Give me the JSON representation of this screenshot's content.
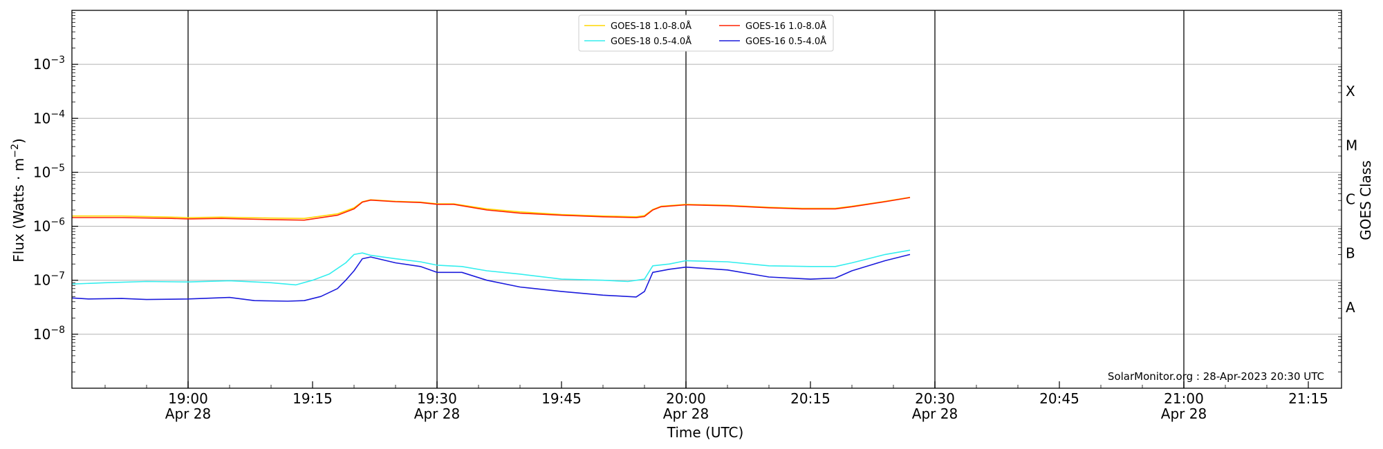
{
  "chart_data": {
    "type": "line",
    "title": "",
    "xlabel": "Time (UTC)",
    "ylabel": "Flux (Watts · m",
    "ylabel_sup": "−2",
    "ylabel_close": ")",
    "y_scale": "log",
    "ylim": [
      1e-09,
      0.01
    ],
    "y_ticks": [
      {
        "value": 1e-08,
        "base": "10",
        "exp": "−8"
      },
      {
        "value": 1e-07,
        "base": "10",
        "exp": "−7"
      },
      {
        "value": 1e-06,
        "base": "10",
        "exp": "−6"
      },
      {
        "value": 1e-05,
        "base": "10",
        "exp": "−5"
      },
      {
        "value": 0.0001,
        "base": "10",
        "exp": "−4"
      },
      {
        "value": 0.001,
        "base": "10",
        "exp": "−3"
      }
    ],
    "xlim": [
      "18:46",
      "21:19"
    ],
    "x_ticks": [
      {
        "time": "19:00",
        "label": "19:00",
        "date": "Apr 28"
      },
      {
        "time": "19:15",
        "label": "19:15",
        "date": ""
      },
      {
        "time": "19:30",
        "label": "19:30",
        "date": "Apr 28"
      },
      {
        "time": "19:45",
        "label": "19:45",
        "date": ""
      },
      {
        "time": "20:00",
        "label": "20:00",
        "date": "Apr 28"
      },
      {
        "time": "20:15",
        "label": "20:15",
        "date": ""
      },
      {
        "time": "20:30",
        "label": "20:30",
        "date": "Apr 28"
      },
      {
        "time": "20:45",
        "label": "20:45",
        "date": ""
      },
      {
        "time": "21:00",
        "label": "21:00",
        "date": "Apr 28"
      },
      {
        "time": "21:15",
        "label": "21:15",
        "date": ""
      }
    ],
    "vertical_lines": [
      "19:00",
      "19:30",
      "20:00",
      "20:30",
      "21:00"
    ],
    "right_axis": {
      "label": "GOES Class",
      "classes": [
        {
          "label": "A",
          "value": 3.16e-08
        },
        {
          "label": "B",
          "value": 3.16e-07
        },
        {
          "label": "C",
          "value": 3.16e-06
        },
        {
          "label": "M",
          "value": 3.16e-05
        },
        {
          "label": "X",
          "value": 0.000316
        }
      ]
    },
    "grid": "horizontal at decades",
    "legend": {
      "placement": "top-center",
      "columns": 2
    },
    "annotation": "SolarMonitor.org : 28-Apr-2023 20:30 UTC",
    "series": [
      {
        "name": "GOES-18 1.0-8.0Å",
        "color": "#ffd700",
        "x": [
          "18:46",
          "18:52",
          "18:58",
          "19:00",
          "19:04",
          "19:10",
          "19:14",
          "19:18",
          "19:20",
          "19:21",
          "19:22",
          "19:25",
          "19:28",
          "19:30",
          "19:32",
          "19:36",
          "19:40",
          "19:45",
          "19:50",
          "19:54",
          "19:55",
          "19:56",
          "19:57",
          "20:00",
          "20:05",
          "20:10",
          "20:14",
          "20:18",
          "20:20",
          "20:24",
          "20:27"
        ],
        "y": [
          1.55e-06,
          1.55e-06,
          1.48e-06,
          1.45e-06,
          1.48e-06,
          1.42e-06,
          1.4e-06,
          1.7e-06,
          2.2e-06,
          2.85e-06,
          3.1e-06,
          2.9e-06,
          2.8e-06,
          2.6e-06,
          2.6e-06,
          2.1e-06,
          1.85e-06,
          1.65e-06,
          1.55e-06,
          1.5e-06,
          1.58e-06,
          2.05e-06,
          2.35e-06,
          2.55e-06,
          2.45e-06,
          2.25e-06,
          2.15e-06,
          2.15e-06,
          2.35e-06,
          2.9e-06,
          3.45e-06
        ]
      },
      {
        "name": "GOES-16 1.0-8.0Å",
        "color": "#ff2000",
        "x": [
          "18:46",
          "18:52",
          "18:58",
          "19:00",
          "19:04",
          "19:10",
          "19:14",
          "19:18",
          "19:20",
          "19:21",
          "19:22",
          "19:25",
          "19:28",
          "19:30",
          "19:32",
          "19:36",
          "19:40",
          "19:45",
          "19:50",
          "19:54",
          "19:55",
          "19:56",
          "19:57",
          "20:00",
          "20:05",
          "20:10",
          "20:14",
          "20:18",
          "20:20",
          "20:24",
          "20:27"
        ],
        "y": [
          1.45e-06,
          1.45e-06,
          1.4e-06,
          1.37e-06,
          1.4e-06,
          1.33e-06,
          1.3e-06,
          1.6e-06,
          2.1e-06,
          2.8e-06,
          3.05e-06,
          2.85e-06,
          2.75e-06,
          2.55e-06,
          2.55e-06,
          2e-06,
          1.75e-06,
          1.6e-06,
          1.5e-06,
          1.45e-06,
          1.52e-06,
          2e-06,
          2.3e-06,
          2.5e-06,
          2.4e-06,
          2.2e-06,
          2.1e-06,
          2.1e-06,
          2.3e-06,
          2.85e-06,
          3.4e-06
        ]
      },
      {
        "name": "GOES-18 0.5-4.0Å",
        "color": "#33eeee",
        "x": [
          "18:46",
          "18:50",
          "18:55",
          "19:00",
          "19:05",
          "19:10",
          "19:13",
          "19:15",
          "19:17",
          "19:19",
          "19:20",
          "19:21",
          "19:22",
          "19:25",
          "19:28",
          "19:30",
          "19:33",
          "19:36",
          "19:40",
          "19:45",
          "19:50",
          "19:53",
          "19:55",
          "19:56",
          "19:58",
          "20:00",
          "20:05",
          "20:10",
          "20:15",
          "20:18",
          "20:20",
          "20:24",
          "20:27"
        ],
        "y": [
          8.5e-08,
          9e-08,
          9.5e-08,
          9.3e-08,
          9.8e-08,
          9e-08,
          8.2e-08,
          1e-07,
          1.3e-07,
          2.1e-07,
          3e-07,
          3.2e-07,
          2.9e-07,
          2.5e-07,
          2.2e-07,
          1.9e-07,
          1.8e-07,
          1.5e-07,
          1.3e-07,
          1.05e-07,
          1e-07,
          9.5e-08,
          1.05e-07,
          1.85e-07,
          2e-07,
          2.3e-07,
          2.2e-07,
          1.85e-07,
          1.8e-07,
          1.8e-07,
          2.1e-07,
          3e-07,
          3.6e-07
        ]
      },
      {
        "name": "GOES-16 0.5-4.0Å",
        "color": "#1a1adc",
        "x": [
          "18:46",
          "18:48",
          "18:52",
          "18:55",
          "19:00",
          "19:05",
          "19:08",
          "19:12",
          "19:14",
          "19:16",
          "19:18",
          "19:19",
          "19:20",
          "19:21",
          "19:22",
          "19:25",
          "19:28",
          "19:30",
          "19:33",
          "19:36",
          "19:40",
          "19:45",
          "19:50",
          "19:54",
          "19:55",
          "19:56",
          "19:58",
          "20:00",
          "20:05",
          "20:10",
          "20:15",
          "20:18",
          "20:20",
          "20:24",
          "20:27"
        ],
        "y": [
          4.7e-08,
          4.5e-08,
          4.6e-08,
          4.4e-08,
          4.5e-08,
          4.8e-08,
          4.2e-08,
          4.1e-08,
          4.2e-08,
          5e-08,
          7e-08,
          1e-07,
          1.5e-07,
          2.5e-07,
          2.7e-07,
          2.1e-07,
          1.8e-07,
          1.4e-07,
          1.4e-07,
          1e-07,
          7.5e-08,
          6.2e-08,
          5.3e-08,
          4.9e-08,
          6.2e-08,
          1.4e-07,
          1.6e-07,
          1.75e-07,
          1.55e-07,
          1.15e-07,
          1.05e-07,
          1.1e-07,
          1.5e-07,
          2.3e-07,
          3e-07
        ]
      }
    ]
  }
}
